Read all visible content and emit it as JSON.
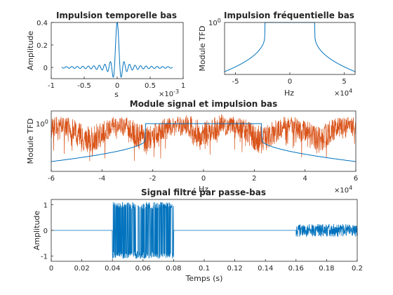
{
  "colors": {
    "series_blue": "#0072BD",
    "series_orange": "#D95319",
    "axis": "#262626"
  },
  "chart_data": [
    {
      "type": "line",
      "title": "Impulsion temporelle bas",
      "xlabel": "s",
      "ylabel": "Amplitude",
      "xlim": [
        -1,
        1
      ],
      "ylim": [
        -0.1,
        0.4
      ],
      "x_multiplier": "×10^-3",
      "x_ticks": [
        "-1",
        "-0.5",
        "0",
        "0.5",
        "1"
      ],
      "y_ticks": [
        "0",
        "0.2",
        "0.4"
      ],
      "series": [
        {
          "description": "sinc-like impulse response centred at 0 with peak 0.4",
          "peak": 0.4,
          "x_range": [
            -0.84,
            0.84
          ]
        }
      ]
    },
    {
      "type": "line",
      "title": "Impulsion fréquentielle bas",
      "xlabel": "Hz",
      "ylabel": "Module TFD",
      "xlim": [
        -6,
        6
      ],
      "x_multiplier": "×10^4",
      "y_scale": "log",
      "x_ticks": [
        "-5",
        "0",
        "5"
      ],
      "y_ticks": [
        "10^0"
      ],
      "series": [
        {
          "description": "low-pass magnitude response, flat at 1 between -2.3 and 2.3 (×10^4 Hz)",
          "passband": [
            -2.3,
            2.3
          ]
        }
      ]
    },
    {
      "type": "line",
      "title": "Module signal et impulsion bas",
      "xlabel": "Hz",
      "ylabel": "Module TFD",
      "xlim": [
        -6,
        6
      ],
      "x_multiplier": "×10^4",
      "y_scale": "log",
      "x_ticks": [
        "-6",
        "-4",
        "-2",
        "0",
        "2",
        "4",
        "6"
      ],
      "y_ticks": [
        "10^0"
      ],
      "series": [
        {
          "description": "filter magnitude response (blue)",
          "passband": [
            -2.3,
            2.3
          ]
        },
        {
          "description": "noisy signal spectrum (orange)"
        }
      ]
    },
    {
      "type": "line",
      "title": "Signal filtré par passe-bas",
      "xlabel": "Temps (s)",
      "ylabel": "Amplitude",
      "xlim": [
        0,
        0.2
      ],
      "ylim": [
        -1.2,
        1.2
      ],
      "x_ticks": [
        "0",
        "0.02",
        "0.04",
        "0.06",
        "0.08",
        "0.1",
        "0.12",
        "0.14",
        "0.16",
        "0.18",
        "0.2"
      ],
      "y_ticks": [
        "-1",
        "0",
        "1"
      ],
      "series": [
        {
          "description": "filtered time signal: bursts of amplitude about 1.1 on [0.04, 0.08] and about 0.25 on [0.16, 0.2], zero elsewhere",
          "segments": [
            {
              "t": [
                0.04,
                0.08
              ],
              "amplitude": 1.1
            },
            {
              "t": [
                0.16,
                0.2
              ],
              "amplitude": 0.25
            }
          ]
        }
      ]
    }
  ]
}
